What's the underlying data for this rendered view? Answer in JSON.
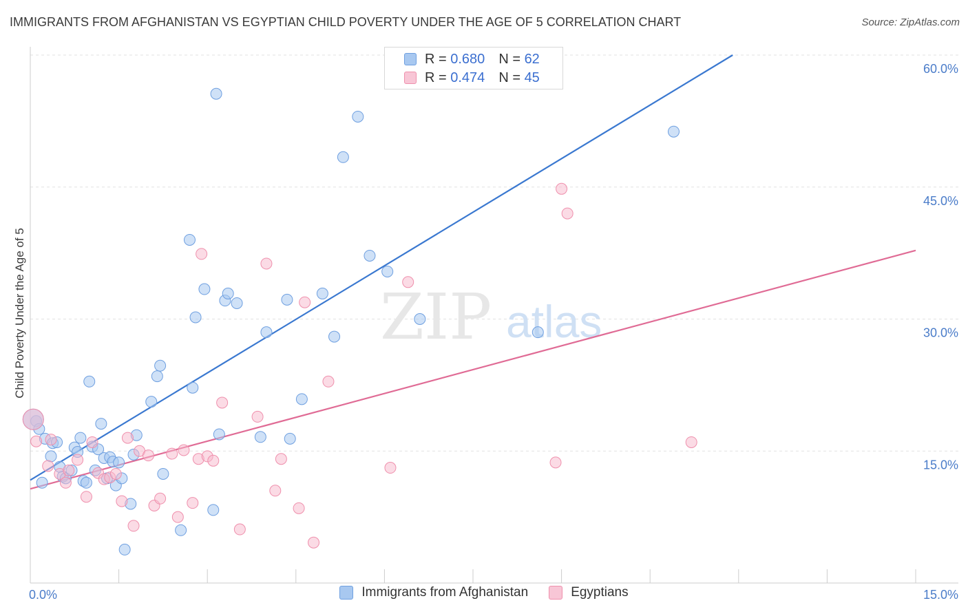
{
  "title": "IMMIGRANTS FROM AFGHANISTAN VS EGYPTIAN CHILD POVERTY UNDER THE AGE OF 5 CORRELATION CHART",
  "source": "Source: ZipAtlas.com",
  "watermark": {
    "zip": "ZIP",
    "atlas": "atlas"
  },
  "legend": {
    "rows": [
      {
        "r_label": "R = ",
        "r_value": "0.680",
        "n_label": "N = ",
        "n_value": "62",
        "color": "#a8c8f0"
      },
      {
        "r_label": "R = ",
        "r_value": "0.474",
        "n_label": "N = ",
        "n_value": "45",
        "color": "#f8b8cc"
      }
    ]
  },
  "chart_data": {
    "type": "scatter",
    "title": "IMMIGRANTS FROM AFGHANISTAN VS EGYPTIAN CHILD POVERTY UNDER THE AGE OF 5 CORRELATION CHART",
    "xlabel": "",
    "ylabel": "Child Poverty Under the Age of 5",
    "xlim": [
      0,
      15
    ],
    "ylim": [
      0,
      60
    ],
    "x_tick_labels": [
      "0.0%",
      "15.0%"
    ],
    "y_ticks": [
      15,
      30,
      45,
      60
    ],
    "y_tick_labels": [
      "15.0%",
      "30.0%",
      "45.0%",
      "60.0%"
    ],
    "grid": true,
    "legend_position": "top-center",
    "series": [
      {
        "name": "Immigrants from Afghanistan",
        "color": "#a8c8f0",
        "stroke": "#6e9fe0",
        "line_color": "#3a78d0",
        "trend": {
          "x": [
            0,
            11.9
          ],
          "y": [
            11.7,
            60.0
          ]
        },
        "points": [
          [
            0.1,
            18.4
          ],
          [
            0.15,
            17.5
          ],
          [
            0.2,
            11.4
          ],
          [
            0.25,
            16.4
          ],
          [
            0.35,
            14.4
          ],
          [
            0.38,
            15.9
          ],
          [
            0.45,
            16.0
          ],
          [
            0.5,
            13.2
          ],
          [
            0.55,
            12.1
          ],
          [
            0.6,
            11.9
          ],
          [
            0.7,
            12.8
          ],
          [
            0.75,
            15.4
          ],
          [
            0.8,
            14.9
          ],
          [
            0.85,
            16.5
          ],
          [
            0.9,
            11.6
          ],
          [
            0.95,
            11.4
          ],
          [
            1.0,
            22.9
          ],
          [
            1.05,
            15.5
          ],
          [
            1.1,
            12.8
          ],
          [
            1.15,
            15.2
          ],
          [
            1.2,
            18.1
          ],
          [
            1.25,
            14.2
          ],
          [
            1.3,
            11.9
          ],
          [
            1.35,
            14.3
          ],
          [
            1.4,
            13.8
          ],
          [
            1.45,
            11.1
          ],
          [
            1.5,
            13.7
          ],
          [
            1.55,
            11.9
          ],
          [
            1.6,
            3.8
          ],
          [
            1.7,
            9.0
          ],
          [
            1.75,
            14.6
          ],
          [
            1.8,
            16.8
          ],
          [
            2.05,
            20.6
          ],
          [
            2.15,
            23.5
          ],
          [
            2.2,
            24.7
          ],
          [
            2.25,
            12.4
          ],
          [
            2.55,
            6.0
          ],
          [
            2.7,
            39.0
          ],
          [
            2.75,
            22.2
          ],
          [
            2.8,
            30.2
          ],
          [
            2.95,
            33.4
          ],
          [
            3.1,
            8.3
          ],
          [
            3.15,
            55.6
          ],
          [
            3.2,
            16.9
          ],
          [
            3.3,
            32.1
          ],
          [
            3.35,
            32.9
          ],
          [
            3.5,
            31.8
          ],
          [
            3.9,
            16.6
          ],
          [
            4.0,
            28.5
          ],
          [
            4.35,
            32.2
          ],
          [
            4.4,
            16.4
          ],
          [
            4.6,
            20.9
          ],
          [
            4.95,
            32.9
          ],
          [
            5.15,
            28.0
          ],
          [
            5.3,
            48.4
          ],
          [
            5.55,
            53.0
          ],
          [
            5.75,
            37.2
          ],
          [
            6.05,
            35.4
          ],
          [
            6.6,
            30.0
          ],
          [
            8.6,
            28.5
          ],
          [
            10.9,
            51.3
          ],
          [
            0.05,
            18.6
          ]
        ]
      },
      {
        "name": "Egyptians",
        "color": "#f8b8cc",
        "stroke": "#ef8fac",
        "line_color": "#e06b95",
        "trend": {
          "x": [
            0,
            15
          ],
          "y": [
            10.7,
            37.8
          ]
        },
        "points": [
          [
            0.05,
            18.6
          ],
          [
            0.1,
            16.1
          ],
          [
            0.3,
            13.3
          ],
          [
            0.35,
            16.3
          ],
          [
            0.5,
            12.4
          ],
          [
            0.6,
            11.4
          ],
          [
            0.65,
            12.8
          ],
          [
            0.8,
            14.0
          ],
          [
            0.95,
            9.8
          ],
          [
            1.05,
            16.0
          ],
          [
            1.15,
            12.5
          ],
          [
            1.25,
            11.8
          ],
          [
            1.35,
            12.0
          ],
          [
            1.45,
            12.4
          ],
          [
            1.55,
            9.3
          ],
          [
            1.65,
            16.5
          ],
          [
            1.75,
            6.5
          ],
          [
            1.85,
            15.0
          ],
          [
            2.0,
            14.5
          ],
          [
            2.1,
            8.8
          ],
          [
            2.2,
            9.6
          ],
          [
            2.4,
            14.7
          ],
          [
            2.5,
            7.5
          ],
          [
            2.6,
            15.1
          ],
          [
            2.75,
            9.1
          ],
          [
            2.85,
            14.1
          ],
          [
            2.9,
            37.4
          ],
          [
            3.0,
            14.4
          ],
          [
            3.1,
            13.9
          ],
          [
            3.25,
            20.5
          ],
          [
            3.55,
            6.1
          ],
          [
            3.85,
            18.9
          ],
          [
            4.0,
            36.3
          ],
          [
            4.15,
            10.5
          ],
          [
            4.25,
            14.1
          ],
          [
            4.55,
            8.5
          ],
          [
            4.65,
            31.9
          ],
          [
            4.8,
            4.6
          ],
          [
            5.05,
            22.9
          ],
          [
            6.1,
            13.1
          ],
          [
            6.4,
            34.2
          ],
          [
            8.9,
            13.7
          ],
          [
            9.0,
            44.8
          ],
          [
            9.1,
            42.0
          ],
          [
            11.2,
            16.0
          ]
        ]
      }
    ]
  }
}
